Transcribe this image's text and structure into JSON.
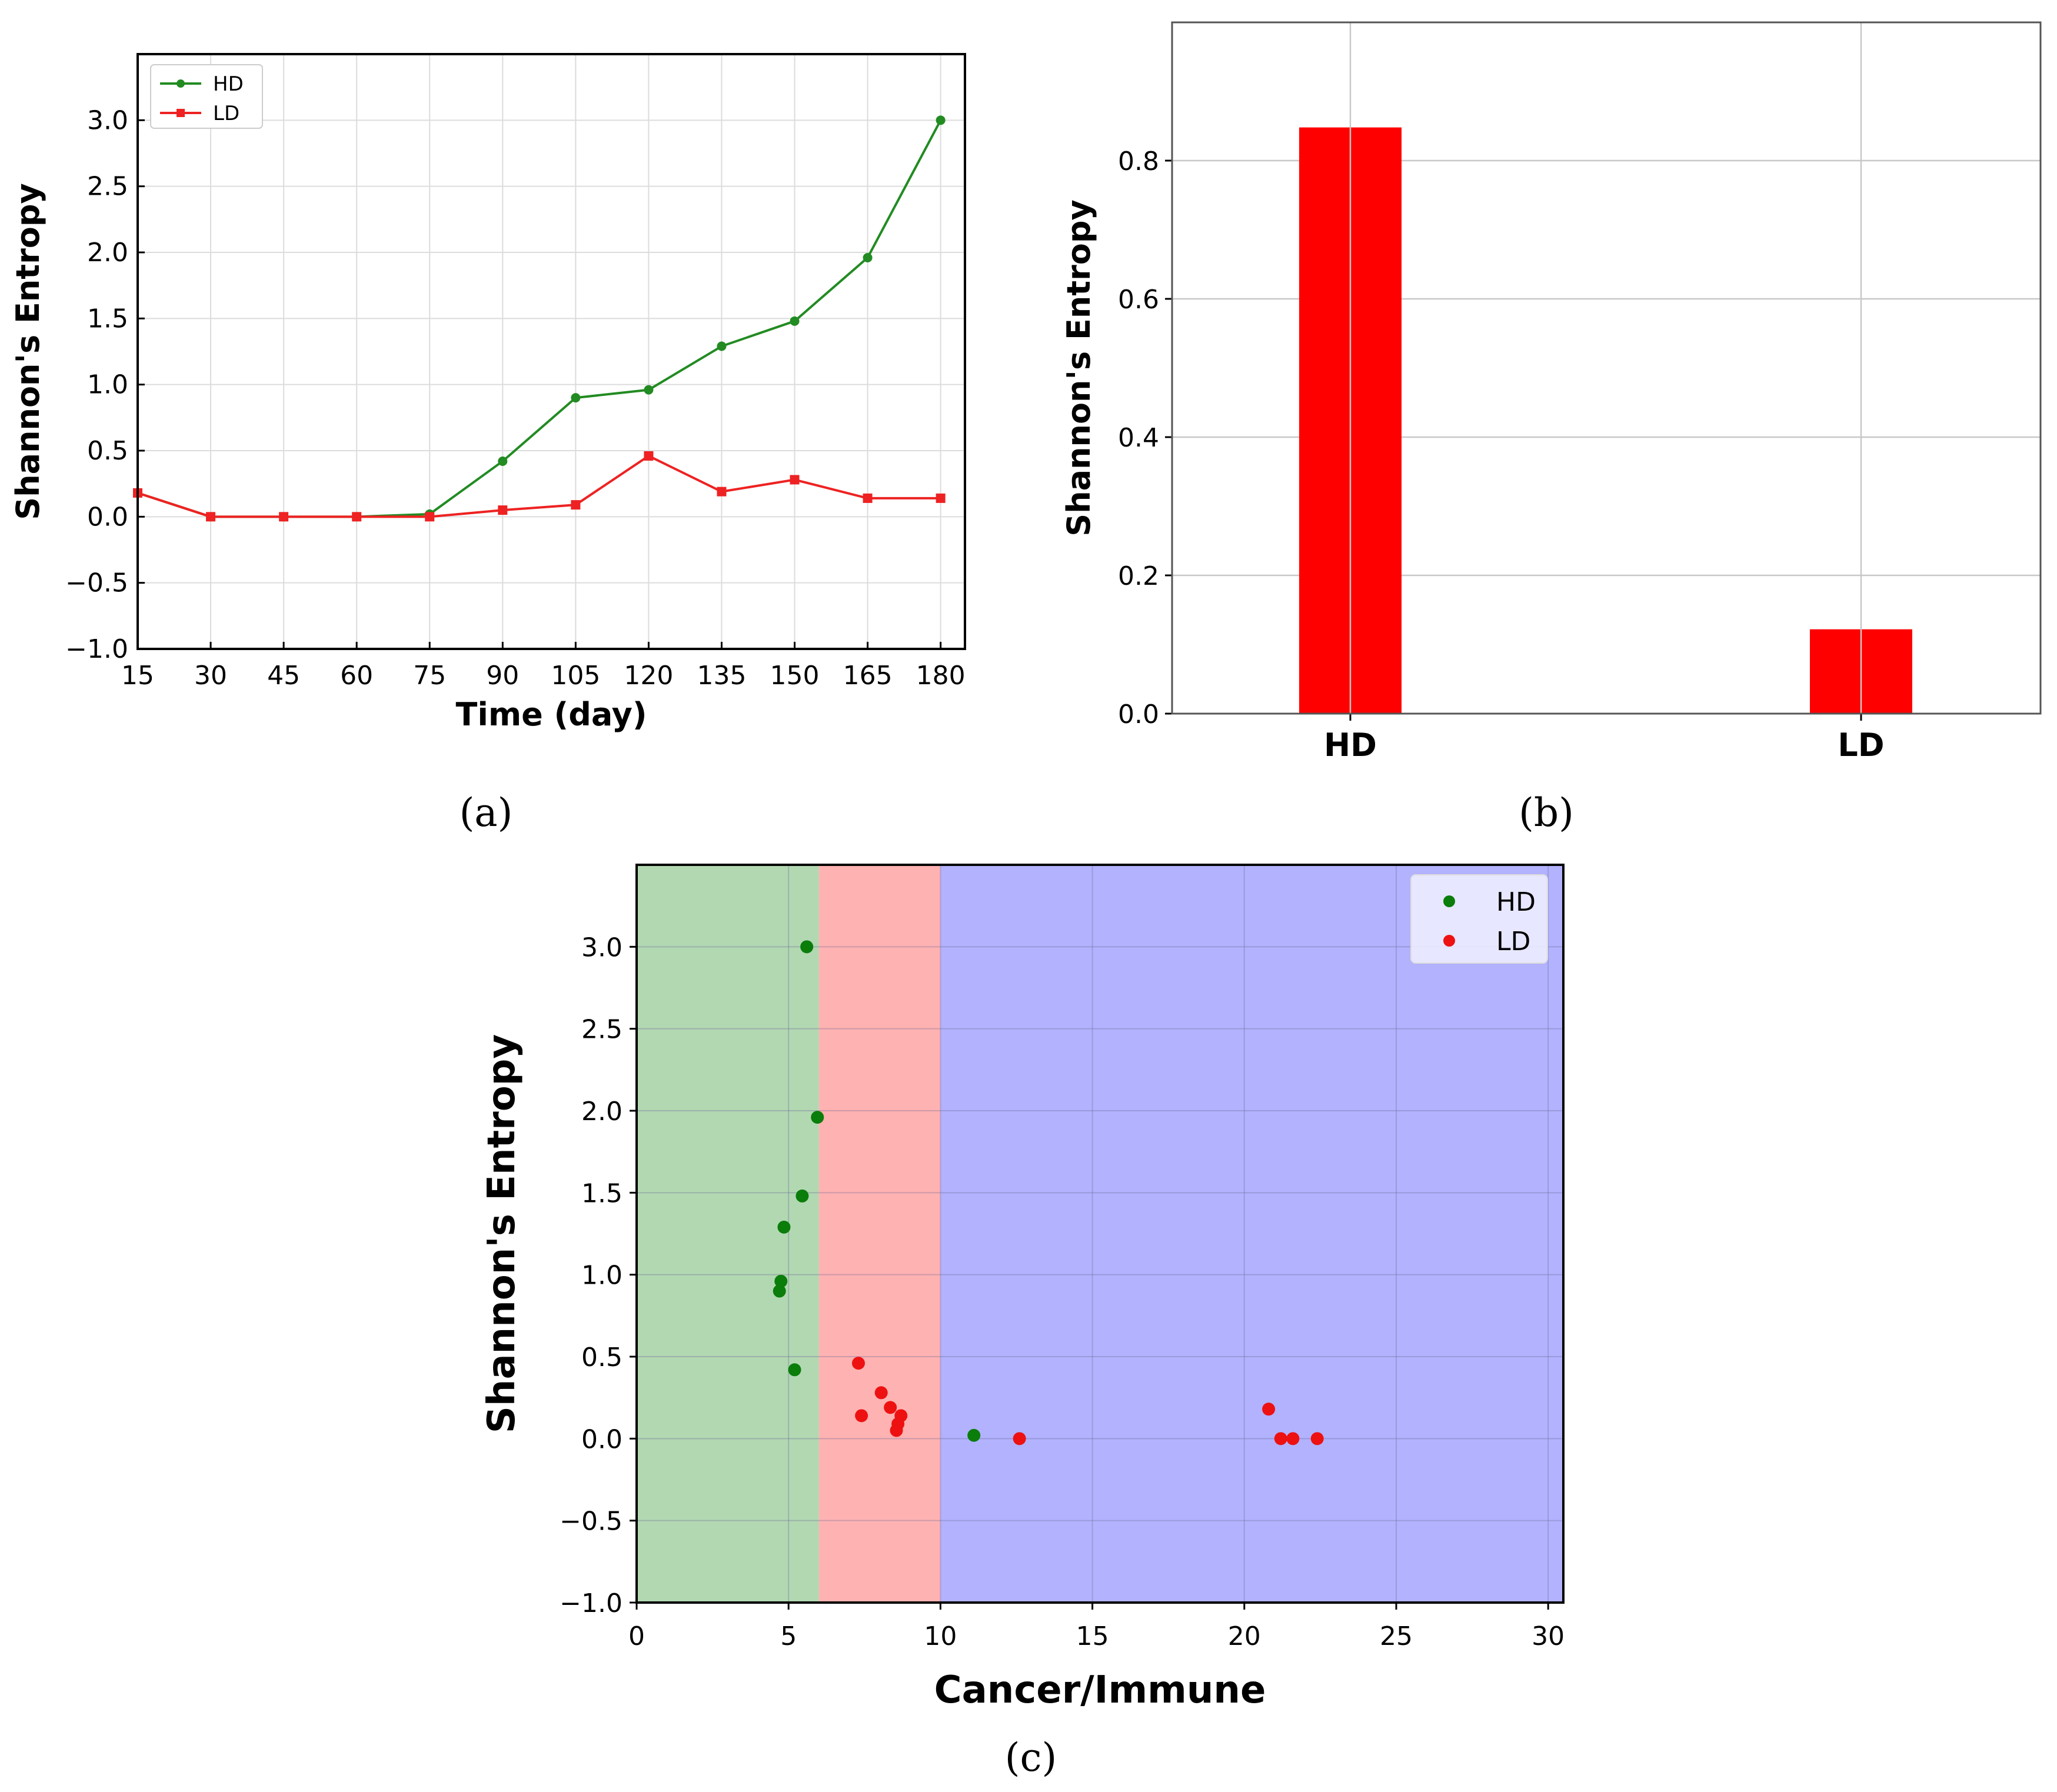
{
  "chart_data": [
    {
      "id": "a",
      "panel_label": "(a)",
      "type": "line",
      "xlabel": "Time (day)",
      "ylabel": "Shannon's Entropy",
      "x": [
        15,
        30,
        45,
        60,
        75,
        90,
        105,
        120,
        135,
        150,
        165,
        180
      ],
      "xticks": [
        15,
        30,
        45,
        60,
        75,
        90,
        105,
        120,
        135,
        150,
        165,
        180
      ],
      "xlim": [
        15,
        185
      ],
      "ylim": [
        -1.0,
        3.5
      ],
      "yticks": [
        -1.0,
        -0.5,
        0.0,
        0.5,
        1.0,
        1.5,
        2.0,
        2.5,
        3.0
      ],
      "ytick_labels": [
        "−1.0",
        "−0.5",
        "0.0",
        "0.5",
        "1.0",
        "1.5",
        "2.0",
        "2.5",
        "3.0"
      ],
      "grid": true,
      "legend_position": "top-left",
      "series": [
        {
          "name": "HD",
          "color": "#228b22",
          "marker": "circle",
          "values": [
            0.18,
            0.0,
            0.0,
            0.0,
            0.02,
            0.42,
            0.9,
            0.96,
            1.29,
            1.48,
            1.96,
            3.0
          ]
        },
        {
          "name": "LD",
          "color": "#ee2222",
          "marker": "square",
          "values": [
            0.18,
            0.0,
            0.0,
            0.0,
            0.0,
            0.05,
            0.09,
            0.46,
            0.19,
            0.28,
            0.14,
            0.14
          ]
        }
      ]
    },
    {
      "id": "b",
      "panel_label": "(b)",
      "type": "bar",
      "xlabel": "",
      "ylabel": "Shannon's Entropy",
      "categories": [
        "HD",
        "LD"
      ],
      "values": [
        0.848,
        0.122
      ],
      "color": "#ff0000",
      "ylim": [
        0.0,
        1.0
      ],
      "yticks": [
        0.0,
        0.2,
        0.4,
        0.6,
        0.8
      ],
      "ytick_labels": [
        "0.0",
        "0.2",
        "0.4",
        "0.6",
        "0.8"
      ],
      "grid": true
    },
    {
      "id": "c",
      "panel_label": "(c)",
      "type": "scatter",
      "xlabel": "Cancer/Immune",
      "ylabel": "Shannon's Entropy",
      "xlim": [
        0,
        30.5
      ],
      "ylim": [
        -1.0,
        3.5
      ],
      "xticks": [
        0,
        5,
        10,
        15,
        20,
        25,
        30
      ],
      "yticks": [
        -1.0,
        -0.5,
        0.0,
        0.5,
        1.0,
        1.5,
        2.0,
        2.5,
        3.0
      ],
      "ytick_labels": [
        "−1.0",
        "−0.5",
        "0.0",
        "0.5",
        "1.0",
        "1.5",
        "2.0",
        "2.5",
        "3.0"
      ],
      "grid": true,
      "legend_position": "top-right",
      "regions": [
        {
          "from": 0,
          "to": 6,
          "color": "#b2d8b2"
        },
        {
          "from": 6,
          "to": 10,
          "color": "#ffb2b2"
        },
        {
          "from": 10,
          "to": 30.5,
          "color": "#b2b2ff"
        }
      ],
      "series": [
        {
          "name": "HD",
          "color": "#0a7d0a",
          "points": [
            [
              5.6,
              3.0
            ],
            [
              5.95,
              1.96
            ],
            [
              5.45,
              1.48
            ],
            [
              4.85,
              1.29
            ],
            [
              4.75,
              0.96
            ],
            [
              4.7,
              0.9
            ],
            [
              5.2,
              0.42
            ],
            [
              11.1,
              0.02
            ]
          ]
        },
        {
          "name": "LD",
          "color": "#ee1111",
          "points": [
            [
              7.3,
              0.46
            ],
            [
              8.05,
              0.28
            ],
            [
              8.35,
              0.19
            ],
            [
              7.4,
              0.14
            ],
            [
              8.7,
              0.14
            ],
            [
              8.6,
              0.09
            ],
            [
              8.55,
              0.05
            ],
            [
              12.6,
              0.0
            ],
            [
              20.8,
              0.18
            ],
            [
              21.2,
              0.0
            ],
            [
              21.6,
              0.0
            ],
            [
              22.4,
              0.0
            ]
          ]
        }
      ]
    }
  ]
}
